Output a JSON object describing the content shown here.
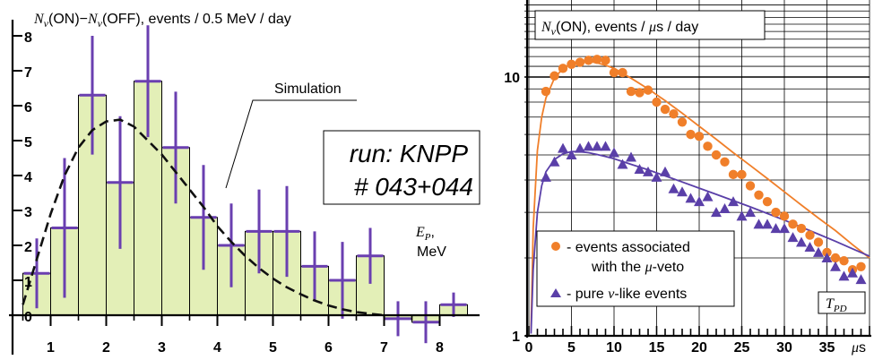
{
  "chart_data": [
    {
      "type": "bar",
      "title_parts": {
        "n1": "N",
        "sub1": "ν",
        "on": "(ON)",
        "minus": "−",
        "n2": "N",
        "sub2": "ν",
        "rest": "(OFF), events / 0.5 MeV / day"
      },
      "xlabel_var": "E",
      "xlabel_sub": "P",
      "xlabel_comma": ",",
      "xlabel_unit": "MeV",
      "xlim": [
        0.25,
        8.5
      ],
      "ylim": [
        -0.4,
        8.2
      ],
      "xticks": [
        "1",
        "2",
        "3",
        "4",
        "5",
        "6",
        "7",
        "8"
      ],
      "yticks": [
        "0",
        "1",
        "2",
        "3",
        "4",
        "5",
        "6",
        "7",
        "8"
      ],
      "bin_width": 0.5,
      "bins_left": [
        0.5,
        1.0,
        1.5,
        2.0,
        2.5,
        3.0,
        3.5,
        4.0,
        4.5,
        5.0,
        5.5,
        6.0,
        6.5,
        7.0,
        7.5,
        8.0
      ],
      "values": [
        1.2,
        2.5,
        6.3,
        3.8,
        6.7,
        4.8,
        2.8,
        2.0,
        2.4,
        2.4,
        1.4,
        1.0,
        1.7,
        -0.1,
        -0.2,
        0.3
      ],
      "errors": [
        1.0,
        2.0,
        1.7,
        1.9,
        1.6,
        1.6,
        1.5,
        1.2,
        1.2,
        1.3,
        1.0,
        1.1,
        0.8,
        0.5,
        0.6,
        0.35
      ],
      "simulation_label": "Simulation",
      "simulation": {
        "x": [
          0.5,
          0.75,
          1.0,
          1.25,
          1.5,
          1.75,
          2.0,
          2.25,
          2.5,
          2.75,
          3.0,
          3.25,
          3.5,
          3.75,
          4.0,
          4.25,
          4.5,
          4.75,
          5.0,
          5.25,
          5.5,
          5.75,
          6.0,
          6.25,
          6.5,
          6.75,
          7.0
        ],
        "y": [
          0.3,
          1.6,
          2.9,
          4.0,
          4.8,
          5.3,
          5.55,
          5.6,
          5.4,
          5.0,
          4.6,
          4.1,
          3.6,
          3.1,
          2.55,
          2.1,
          1.7,
          1.35,
          1.05,
          0.8,
          0.6,
          0.42,
          0.28,
          0.17,
          0.09,
          0.04,
          0.0
        ]
      },
      "annotation_line1": "run: KNPP",
      "annotation_line2": "# 043+044",
      "colors": {
        "bar_fill": "#e3efb7",
        "error_bar": "#6a3fb0",
        "simulation": "#111111"
      }
    },
    {
      "type": "scatter",
      "log_y": true,
      "title_parts": {
        "n": "N",
        "sub": "ν",
        "rest": "(ON), events / ",
        "mu": "μ",
        "rest2": "s / day"
      },
      "xlim": [
        0,
        40
      ],
      "ylim": [
        1,
        19
      ],
      "xticks": [
        "0",
        "5",
        "10",
        "15",
        "20",
        "25",
        "30",
        "35"
      ],
      "yticks": [
        "1",
        "10"
      ],
      "xlabel_mu": "μ",
      "xlabel_unit": "s",
      "corner_label_var": "T",
      "corner_label_sub": "PD",
      "legend": {
        "veto_line1": "- events associated",
        "veto_line2_pre": "with the ",
        "veto_line2_mu": "μ",
        "veto_line2_post": "-veto",
        "pure_pre": "- pure ",
        "pure_nu": "ν",
        "pure_post": "-like events"
      },
      "series": [
        {
          "name": "- events associated with the μ-veto",
          "marker": "circle",
          "x": [
            2,
            3,
            4,
            5,
            6,
            7,
            8,
            9,
            10,
            11,
            12,
            13,
            14,
            15,
            16,
            17,
            18,
            19,
            20,
            21,
            22,
            23,
            24,
            25,
            26,
            27,
            28,
            29,
            30,
            31,
            32,
            33,
            34,
            35,
            36,
            37,
            38,
            39
          ],
          "y": [
            8.8,
            10.1,
            10.8,
            11.2,
            11.4,
            11.6,
            11.7,
            11.6,
            10.4,
            10.4,
            8.8,
            8.7,
            8.9,
            8.0,
            7.5,
            7.2,
            6.7,
            6.0,
            5.9,
            5.4,
            5.0,
            4.7,
            4.2,
            4.2,
            3.8,
            3.5,
            3.3,
            3.0,
            2.9,
            2.7,
            2.6,
            2.45,
            2.3,
            2.1,
            2.0,
            1.95,
            1.8,
            1.85
          ]
        },
        {
          "name": "- pure ν-like events",
          "marker": "triangle",
          "x": [
            2,
            3,
            4,
            5,
            6,
            7,
            8,
            9,
            10,
            11,
            12,
            13,
            14,
            15,
            16,
            17,
            18,
            19,
            20,
            21,
            22,
            23,
            24,
            25,
            26,
            27,
            28,
            29,
            30,
            31,
            32,
            33,
            34,
            35,
            36,
            37,
            38,
            39
          ],
          "y": [
            4.1,
            4.7,
            5.3,
            5.0,
            5.3,
            5.4,
            5.4,
            5.4,
            5.1,
            4.6,
            4.9,
            4.4,
            4.3,
            4.1,
            4.3,
            3.7,
            3.6,
            3.4,
            3.3,
            3.45,
            3.0,
            3.1,
            3.3,
            2.9,
            3.0,
            2.7,
            2.7,
            2.6,
            2.6,
            2.4,
            2.3,
            2.2,
            2.1,
            2.0,
            1.85,
            1.7,
            1.75,
            1.65
          ]
        }
      ],
      "fit_curves": {
        "veto": {
          "x": [
            0.25,
            0.5,
            1,
            1.5,
            2,
            3,
            4,
            5,
            6,
            7,
            8,
            9,
            10,
            12,
            14,
            16,
            18,
            20,
            22,
            24,
            26,
            28,
            30,
            32,
            34,
            36,
            38,
            40
          ],
          "y": [
            1.05,
            2.6,
            5.2,
            7.0,
            8.3,
            9.9,
            10.8,
            11.3,
            11.5,
            11.5,
            11.35,
            11.1,
            10.8,
            9.9,
            9.0,
            8.1,
            7.25,
            6.45,
            5.75,
            5.1,
            4.55,
            4.05,
            3.6,
            3.2,
            2.85,
            2.55,
            2.25,
            2.0
          ]
        },
        "pure": {
          "x": [
            0.25,
            0.5,
            1,
            1.5,
            2,
            3,
            4,
            5,
            6,
            7,
            8,
            9,
            10,
            12,
            14,
            16,
            18,
            20,
            22,
            24,
            26,
            28,
            30,
            32,
            34,
            36,
            38,
            40
          ],
          "y": [
            1.02,
            1.8,
            3.0,
            3.8,
            4.3,
            4.8,
            5.05,
            5.15,
            5.15,
            5.1,
            5.02,
            4.93,
            4.83,
            4.6,
            4.38,
            4.15,
            3.93,
            3.72,
            3.52,
            3.33,
            3.15,
            2.97,
            2.8,
            2.63,
            2.47,
            2.32,
            2.17,
            2.03
          ]
        }
      },
      "colors": {
        "veto": "#f07f2a",
        "pure": "#5a3fa8"
      }
    }
  ]
}
